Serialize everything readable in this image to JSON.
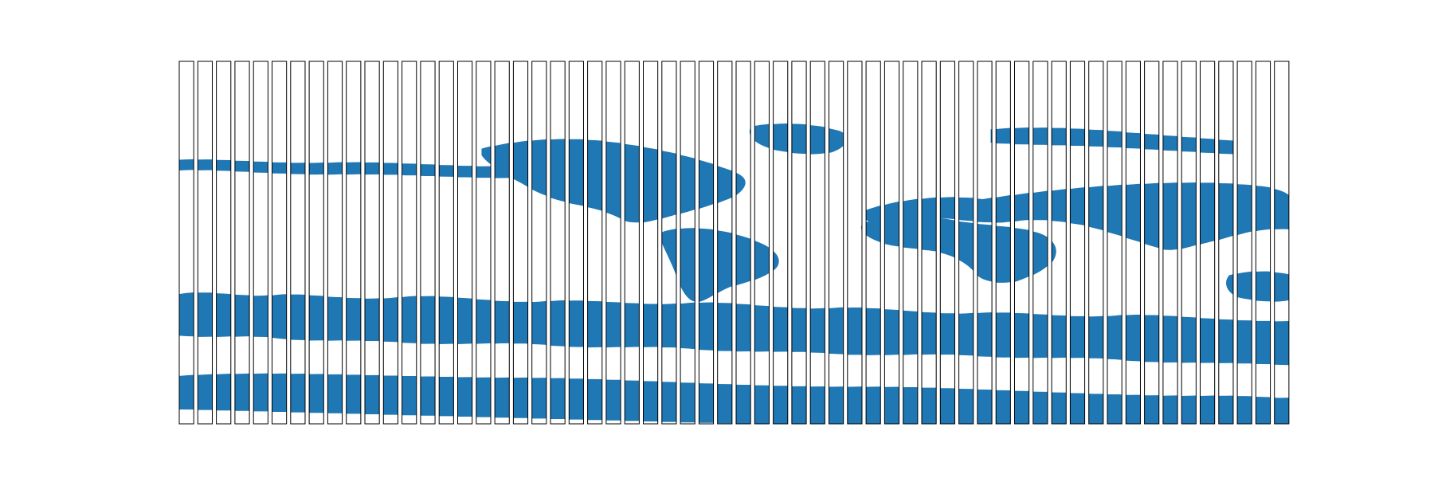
{
  "figure": {
    "panel_count": 60,
    "land_color": "#1f77b4",
    "frame_color": "#000000",
    "background_color": "#ffffff"
  }
}
